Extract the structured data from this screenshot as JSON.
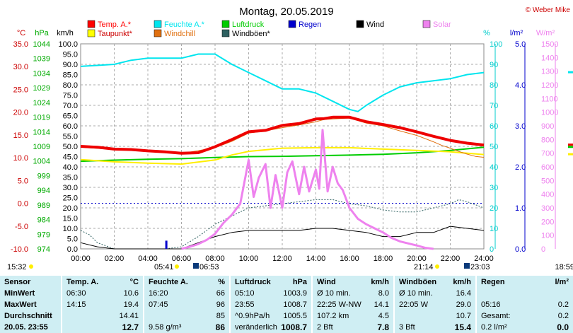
{
  "title": "Montag, 20.05.2019",
  "credit": "© Weber Mike",
  "legend": [
    {
      "label": "Temp. A.*",
      "color": "#ff0000"
    },
    {
      "label": "Feuchte A.*",
      "color": "#00e5ee"
    },
    {
      "label": "Luftdruck",
      "color": "#00cc00"
    },
    {
      "label": "Regen",
      "color": "#0000cc"
    },
    {
      "label": "Wind",
      "color": "#000000"
    },
    {
      "label": "Solar",
      "color": "#ee82ee"
    },
    {
      "label": "Taupunkt*",
      "color": "#ffff00"
    },
    {
      "label": "Windchill",
      "color": "#e07010"
    },
    {
      "label": "Windböen*",
      "color": "#2e6060"
    }
  ],
  "axis_units": {
    "temp": "°C",
    "pressure": "hPa",
    "wind": "km/h",
    "humidity": "%",
    "rain": "l/m²",
    "solar": "W/m²"
  },
  "chart_data": {
    "type": "line",
    "x_ticks": [
      "00:00",
      "02:00",
      "04:00",
      "06:00",
      "08:00",
      "10:00",
      "12:00",
      "14:00",
      "16:00",
      "18:00",
      "20:00",
      "22:00",
      "24:00"
    ],
    "y_axes": {
      "temp": {
        "ticks": [
          "35.0",
          "30.0",
          "25.0",
          "20.0",
          "15.0",
          "10.0",
          "5.0",
          "0.0",
          "-5.0",
          "-10.0"
        ],
        "range": [
          -10,
          35
        ]
      },
      "pressure": {
        "ticks": [
          "1044",
          "1039",
          "1034",
          "1029",
          "1024",
          "1019",
          "1014",
          "1009",
          "1004",
          "999",
          "994",
          "989",
          "984",
          "979",
          "974"
        ],
        "range": [
          974,
          1044
        ]
      },
      "wind": {
        "ticks": [
          "100.0",
          "95.0",
          "90.0",
          "85.0",
          "80.0",
          "75.0",
          "70.0",
          "65.0",
          "60.0",
          "55.0",
          "50.0",
          "45.0",
          "40.0",
          "35.0",
          "30.0",
          "25.0",
          "20.0",
          "15.0",
          "10.0",
          "5.0",
          "0.0"
        ],
        "range": [
          0,
          100
        ]
      },
      "humidity": {
        "ticks": [
          "100",
          "90",
          "80",
          "70",
          "60",
          "50",
          "40",
          "30",
          "20",
          "10",
          "0"
        ],
        "range": [
          0,
          100
        ]
      },
      "rain": {
        "ticks": [
          "5.0",
          "4.0",
          "3.0",
          "2.0",
          "1.0",
          "0.0"
        ],
        "range": [
          0,
          5
        ]
      },
      "solar": {
        "ticks": [
          "1500",
          "1400",
          "1300",
          "1200",
          "1100",
          "1000",
          "900",
          "800",
          "700",
          "600",
          "500",
          "400",
          "300",
          "200",
          "100",
          "0"
        ],
        "range": [
          0,
          1500
        ]
      }
    },
    "zero_line_temp": 0,
    "series": [
      {
        "name": "Temp. A.*",
        "axis": "temp",
        "hours": [
          0,
          1,
          2,
          3,
          4,
          5,
          6,
          7,
          8,
          9,
          10,
          11,
          12,
          13,
          14,
          14.5,
          15,
          16,
          17,
          18,
          19,
          20,
          21,
          22,
          23,
          24
        ],
        "values": [
          12.5,
          12.3,
          11.9,
          11.8,
          11.5,
          11.3,
          11.0,
          11.1,
          12.4,
          14.0,
          15.7,
          16.0,
          17.1,
          17.5,
          18.5,
          18.6,
          18.9,
          18.9,
          17.9,
          17.3,
          16.6,
          15.7,
          14.7,
          13.8,
          13.2,
          12.8
        ]
      },
      {
        "name": "Feuchte A.*",
        "axis": "humidity",
        "hours": [
          0,
          2,
          3,
          4,
          6,
          7,
          8,
          9,
          10,
          11,
          12,
          13,
          14,
          15,
          16,
          16.5,
          17,
          18,
          19,
          20,
          21,
          22,
          23,
          24
        ],
        "values": [
          89,
          90,
          92,
          93,
          93,
          95,
          95,
          90,
          86,
          82,
          78,
          78,
          76,
          72,
          68,
          67,
          70,
          75,
          79,
          81,
          82,
          83,
          85,
          86
        ]
      },
      {
        "name": "Luftdruck",
        "axis": "pressure",
        "hours": [
          0,
          2,
          4,
          6,
          8,
          10,
          12,
          14,
          16,
          18,
          20,
          22,
          24
        ],
        "values": [
          1003.9,
          1004.3,
          1004.6,
          1004.8,
          1005.2,
          1005.5,
          1005.6,
          1005.8,
          1006.0,
          1006.3,
          1006.8,
          1007.6,
          1008.7
        ]
      },
      {
        "name": "Taupunkt*",
        "axis": "temp",
        "hours": [
          0,
          2,
          4,
          6,
          8,
          9,
          10,
          12,
          14,
          16,
          18,
          20,
          22,
          24
        ],
        "values": [
          9.6,
          9.1,
          8.8,
          8.6,
          9.5,
          10.6,
          11.4,
          12.1,
          12.2,
          12.2,
          11.9,
          11.6,
          11.3,
          10.7
        ]
      },
      {
        "name": "Windchill",
        "axis": "temp",
        "hours": [
          0,
          2,
          4,
          6,
          8,
          9,
          10,
          11,
          12,
          13,
          14,
          14.5,
          15,
          16,
          17,
          18,
          19,
          20,
          20.5,
          21,
          21.5,
          22,
          22.5,
          23,
          23.5,
          24
        ],
        "values": [
          12.3,
          11.8,
          11.4,
          10.9,
          12.2,
          13.6,
          15.4,
          15.9,
          16.6,
          17.2,
          17.9,
          18.4,
          18.5,
          18.7,
          17.6,
          17.0,
          15.9,
          14.9,
          14.2,
          13.5,
          12.7,
          12.1,
          11.4,
          10.8,
          10.3,
          10.1
        ]
      },
      {
        "name": "Wind",
        "axis": "wind",
        "hours": [
          0,
          1,
          2,
          3,
          4,
          5,
          6,
          7,
          8,
          9,
          10,
          11,
          12,
          13,
          14,
          15,
          16,
          17,
          18,
          19,
          20,
          21,
          22,
          23,
          24
        ],
        "values": [
          3,
          1,
          0,
          0,
          0,
          0,
          0,
          3,
          6,
          8,
          9,
          9,
          9,
          9,
          10,
          10,
          9,
          8,
          6,
          6,
          8,
          8,
          11,
          10,
          9
        ]
      },
      {
        "name": "Windböen*",
        "axis": "wind",
        "hours": [
          0,
          0.5,
          1,
          2,
          3,
          4,
          5,
          6,
          7,
          8,
          9,
          10,
          11,
          12,
          13,
          14,
          15,
          16,
          17,
          18,
          19,
          20,
          21,
          22,
          22.5,
          23,
          24
        ],
        "values": [
          9,
          7,
          3,
          0,
          0,
          0,
          0,
          1,
          6,
          12,
          16,
          20,
          21,
          22,
          23,
          24,
          24,
          22,
          21,
          19,
          18,
          18,
          20,
          22,
          24,
          23,
          20
        ]
      },
      {
        "name": "Solar",
        "axis": "solar",
        "hours": [
          6,
          6.5,
          7,
          7.5,
          8,
          8.5,
          9,
          9.5,
          10,
          10.3,
          10.6,
          11,
          11.3,
          11.6,
          12,
          12.3,
          12.6,
          13,
          13.3,
          13.6,
          14,
          14.2,
          14.4,
          14.7,
          15,
          15.3,
          15.6,
          16,
          16.5,
          17,
          17.5,
          18,
          18.5,
          19,
          19.5,
          20,
          20.5,
          21
        ],
        "values": [
          0,
          15,
          35,
          65,
          110,
          190,
          250,
          330,
          650,
          380,
          520,
          620,
          300,
          540,
          300,
          560,
          640,
          400,
          600,
          420,
          580,
          440,
          870,
          420,
          600,
          480,
          430,
          300,
          220,
          180,
          150,
          120,
          80,
          55,
          40,
          25,
          8,
          0
        ]
      },
      {
        "name": "Regen",
        "axis": "rain",
        "hours": [
          5.1
        ],
        "values": [
          0.2
        ]
      }
    ]
  },
  "time_marks": {
    "left": "15:32",
    "sunrise": "05:41",
    "moonrise": "06:53",
    "sunset": "21:14",
    "moonset": "23:03",
    "right": "18:59"
  },
  "stats": {
    "sensor": {
      "header": "Sensor",
      "rows": [
        "MinWert",
        "MaxWert",
        "Durchschnitt",
        "20.05. 23:55"
      ]
    },
    "temp": {
      "header": "Temp. A.",
      "unit": "°C",
      "rows": [
        [
          "06:30",
          "10.6"
        ],
        [
          "14:15",
          "19.4"
        ],
        [
          "",
          "14.41"
        ],
        [
          "",
          "12.7"
        ]
      ]
    },
    "humidity": {
      "header": "Feuchte A.",
      "unit": "%",
      "rows": [
        [
          "16:20",
          "66"
        ],
        [
          "07:45",
          "96"
        ],
        [
          "",
          "85"
        ],
        [
          "9.58 g/m³",
          "86"
        ]
      ]
    },
    "pressure": {
      "header": "Luftdruck",
      "unit": "hPa",
      "rows": [
        [
          "05:10",
          "1003.9"
        ],
        [
          "23:55",
          "1008.7"
        ],
        [
          "^0.9hPa/h",
          "1005.5"
        ],
        [
          "veränderlich",
          "1008.7"
        ]
      ]
    },
    "wind": {
      "header": "Wind",
      "unit": "km/h",
      "rows": [
        [
          "Ø 10 min.",
          "8.0"
        ],
        [
          "22:25   W-NW",
          "14.1"
        ],
        [
          "107.2 km",
          "4.5"
        ],
        [
          "2 Bft",
          "7.8"
        ]
      ]
    },
    "gust": {
      "header": "Windböen",
      "unit": "km/h",
      "rows": [
        [
          "Ø 10 min.",
          "16.4"
        ],
        [
          "22:05   W",
          "29.0"
        ],
        [
          "",
          "10.7"
        ],
        [
          "3 Bft",
          "15.4"
        ]
      ]
    },
    "rain": {
      "header": "Regen",
      "unit": "l/m²",
      "rows": [
        [
          "",
          ""
        ],
        [
          "05:16",
          "0.2"
        ],
        [
          "Gesamt:",
          "0.2"
        ],
        [
          "0.2 l/m²",
          "0.0"
        ]
      ]
    }
  }
}
